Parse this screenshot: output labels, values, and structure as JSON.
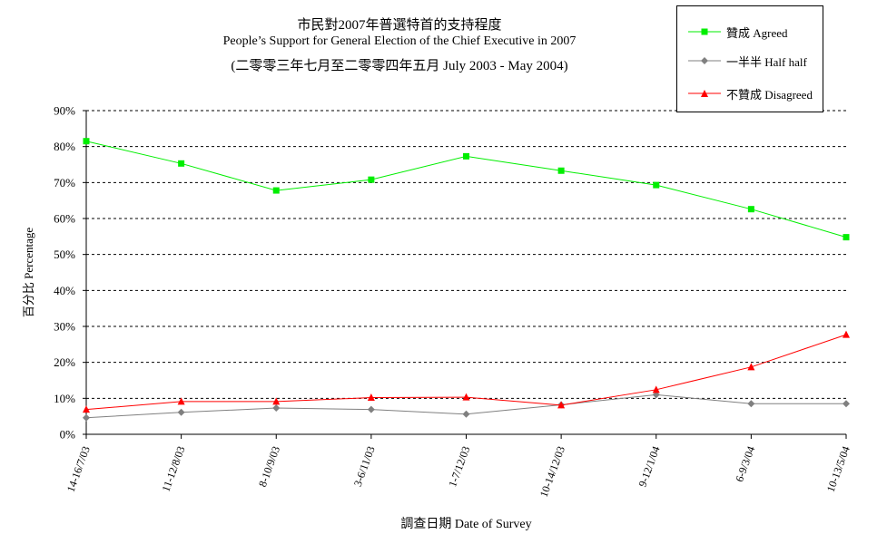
{
  "chart_data": {
    "type": "line",
    "title": "市民對2007年普選特首的支持程度",
    "subtitle": "People’s Support for General Election of the Chief Executive in 2007",
    "subtitle2": "(二零零三年七月至二零零四年五月 July 2003 - May 2004)",
    "xlabel": "調查日期 Date of Survey",
    "ylabel": "百分比 Percentage",
    "categories": [
      "14-16/7/03",
      "11-12/8/03",
      "8-10/9/03",
      "3-6/11/03",
      "1-7/12/03",
      "10-14/12/03",
      "9-12/1/04",
      "6-9/3/04",
      "10-13/5/04"
    ],
    "ylim": [
      0,
      90
    ],
    "yticks": [
      "0%",
      "10%",
      "20%",
      "30%",
      "40%",
      "50%",
      "60%",
      "70%",
      "80%",
      "90%"
    ],
    "grid": "horizontal dashed",
    "legend_position": "top-right",
    "series": [
      {
        "name": "贊成 Agreed",
        "color": "#00ee00",
        "marker": "square",
        "values": [
          81.5,
          75.3,
          67.8,
          70.8,
          77.3,
          73.3,
          69.3,
          62.6,
          54.8
        ]
      },
      {
        "name": "一半半 Half half",
        "color": "#808080",
        "marker": "diamond",
        "values": [
          4.6,
          6.1,
          7.3,
          6.9,
          5.6,
          8.2,
          11.0,
          8.5,
          8.5
        ]
      },
      {
        "name": "不贊成 Disagreed",
        "color": "#ff0000",
        "marker": "triangle",
        "values": [
          6.9,
          9.1,
          9.1,
          10.2,
          10.3,
          8.1,
          12.4,
          18.7,
          27.7
        ]
      }
    ]
  }
}
